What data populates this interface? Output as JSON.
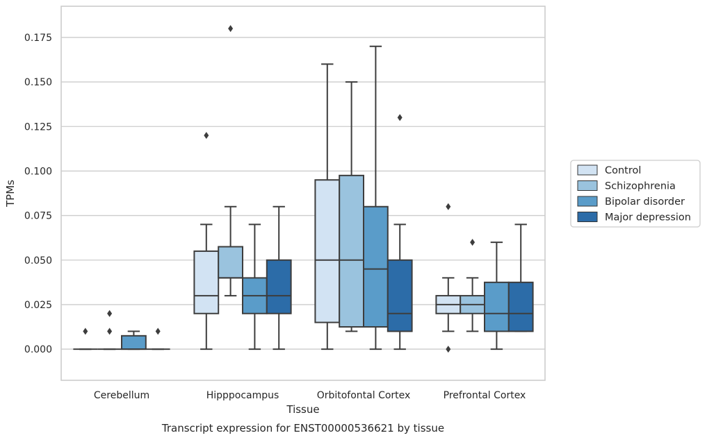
{
  "chart_data": {
    "type": "boxplot",
    "xlabel": "Tissue",
    "ylabel": "TPMs",
    "caption": "Transcript expression for ENST00000536621 by tissue",
    "ylim": [
      -0.0175,
      0.1925
    ],
    "yticks": [
      "0.000",
      "0.025",
      "0.050",
      "0.075",
      "0.100",
      "0.125",
      "0.150",
      "0.175"
    ],
    "grid": "horizontal",
    "legend_position": "right",
    "categories": [
      "Cerebellum",
      "Hipppocampus",
      "Orbitofontal Cortex",
      "Prefrontal Cortex"
    ],
    "series": [
      {
        "name": "Control",
        "color": "#d2e3f3",
        "boxes": [
          {
            "whislo": 0,
            "q1": 0,
            "med": 0,
            "q3": 0,
            "whishi": 0,
            "fliers": [
              0.01
            ]
          },
          {
            "whislo": 0,
            "q1": 0.02,
            "med": 0.03,
            "q3": 0.055,
            "whishi": 0.07,
            "fliers": [
              0.12
            ]
          },
          {
            "whislo": 0,
            "q1": 0.015,
            "med": 0.05,
            "q3": 0.095,
            "whishi": 0.16,
            "fliers": []
          },
          {
            "whislo": 0.01,
            "q1": 0.02,
            "med": 0.025,
            "q3": 0.03,
            "whishi": 0.04,
            "fliers": [
              0.08,
              0.0
            ]
          }
        ]
      },
      {
        "name": "Schizophrenia",
        "color": "#9ac3de",
        "boxes": [
          {
            "whislo": 0,
            "q1": 0,
            "med": 0,
            "q3": 0,
            "whishi": 0,
            "fliers": [
              0.01,
              0.02
            ]
          },
          {
            "whislo": 0.03,
            "q1": 0.04,
            "med": 0.04,
            "q3": 0.0575,
            "whishi": 0.08,
            "fliers": [
              0.18
            ]
          },
          {
            "whislo": 0.01,
            "q1": 0.0125,
            "med": 0.05,
            "q3": 0.0975,
            "whishi": 0.15,
            "fliers": []
          },
          {
            "whislo": 0.01,
            "q1": 0.02,
            "med": 0.025,
            "q3": 0.03,
            "whishi": 0.04,
            "fliers": [
              0.06
            ]
          }
        ]
      },
      {
        "name": "Bipolar disorder",
        "color": "#5a9cc9",
        "boxes": [
          {
            "whislo": 0,
            "q1": 0,
            "med": 0,
            "q3": 0.0075,
            "whishi": 0.01,
            "fliers": []
          },
          {
            "whislo": 0,
            "q1": 0.02,
            "med": 0.03,
            "q3": 0.04,
            "whishi": 0.07,
            "fliers": []
          },
          {
            "whislo": 0,
            "q1": 0.0125,
            "med": 0.045,
            "q3": 0.08,
            "whishi": 0.17,
            "fliers": []
          },
          {
            "whislo": 0,
            "q1": 0.01,
            "med": 0.02,
            "q3": 0.0375,
            "whishi": 0.06,
            "fliers": []
          }
        ]
      },
      {
        "name": "Major depression",
        "color": "#2c6ca8",
        "boxes": [
          {
            "whislo": 0,
            "q1": 0,
            "med": 0,
            "q3": 0,
            "whishi": 0,
            "fliers": [
              0.01
            ]
          },
          {
            "whislo": 0,
            "q1": 0.02,
            "med": 0.03,
            "q3": 0.05,
            "whishi": 0.08,
            "fliers": []
          },
          {
            "whislo": 0,
            "q1": 0.01,
            "med": 0.02,
            "q3": 0.05,
            "whishi": 0.07,
            "fliers": [
              0.13
            ]
          },
          {
            "whislo": 0.01,
            "q1": 0.01,
            "med": 0.02,
            "q3": 0.0375,
            "whishi": 0.07,
            "fliers": []
          }
        ]
      }
    ]
  }
}
